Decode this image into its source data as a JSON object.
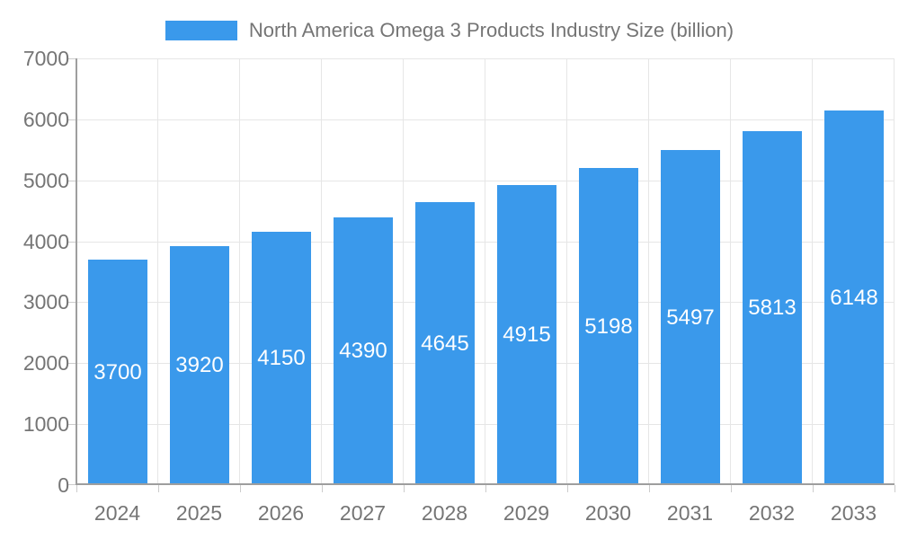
{
  "legend": {
    "swatch_color": "#3A99EB"
  },
  "colors": {
    "bar": "#3A99EB",
    "value_label": "#FFFFFF",
    "axis_text": "#757575",
    "title_text": "#757575",
    "grid": "#E6E6E6",
    "axis_line": "#9E9E9E",
    "tick": "#CCCCCC",
    "background": "#FFFFFF"
  },
  "chart_data": {
    "type": "bar",
    "title": "North America Omega 3 Products Industry Size (billion)",
    "categories": [
      "2024",
      "2025",
      "2026",
      "2027",
      "2028",
      "2029",
      "2030",
      "2031",
      "2032",
      "2033"
    ],
    "values": [
      3700,
      3920,
      4150,
      4390,
      4645,
      4915,
      5198,
      5497,
      5813,
      6148
    ],
    "xlabel": "",
    "ylabel": "",
    "ylim": [
      0,
      7000
    ],
    "yticks": [
      0,
      1000,
      2000,
      3000,
      4000,
      5000,
      6000,
      7000
    ],
    "grid": true,
    "legend_position": "top",
    "value_labels_position": "inside-center"
  }
}
